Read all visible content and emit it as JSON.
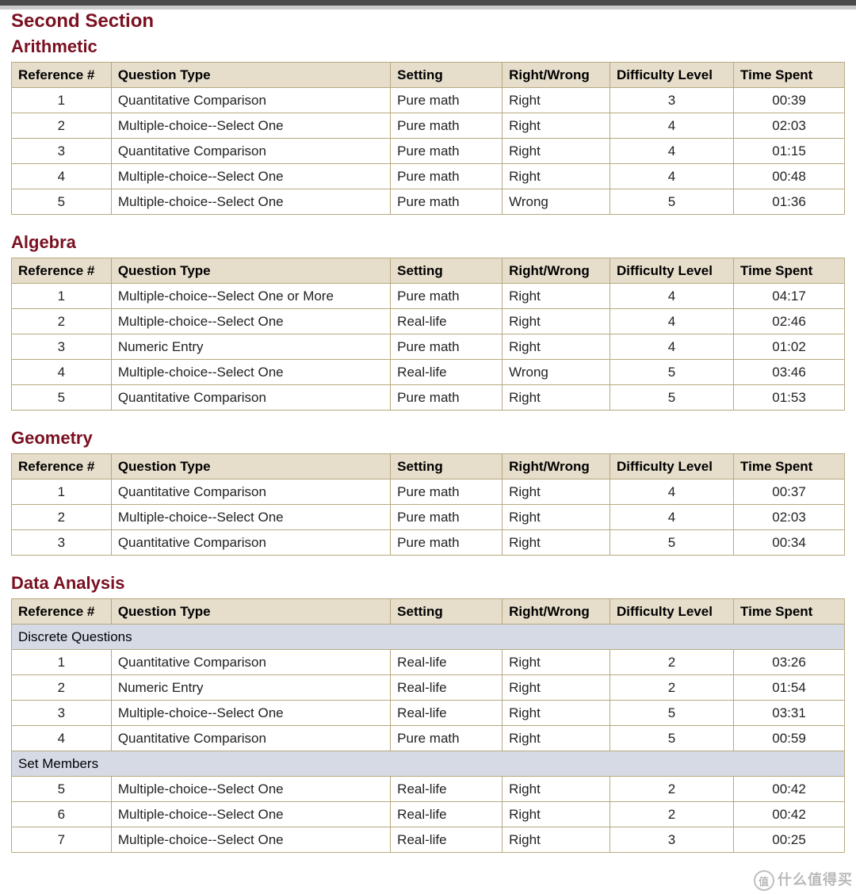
{
  "section_title": "Second Section",
  "columns": {
    "ref": "Reference #",
    "type": "Question Type",
    "setting": "Setting",
    "rw": "Right/Wrong",
    "diff": "Difficulty Level",
    "time": "Time Spent"
  },
  "tables": [
    {
      "title": "Arithmetic",
      "groups": [
        {
          "rows": [
            {
              "ref": "1",
              "type": "Quantitative Comparison",
              "setting": "Pure math",
              "rw": "Right",
              "diff": "3",
              "time": "00:39"
            },
            {
              "ref": "2",
              "type": "Multiple-choice--Select One",
              "setting": "Pure math",
              "rw": "Right",
              "diff": "4",
              "time": "02:03"
            },
            {
              "ref": "3",
              "type": "Quantitative Comparison",
              "setting": "Pure math",
              "rw": "Right",
              "diff": "4",
              "time": "01:15"
            },
            {
              "ref": "4",
              "type": "Multiple-choice--Select One",
              "setting": "Pure math",
              "rw": "Right",
              "diff": "4",
              "time": "00:48"
            },
            {
              "ref": "5",
              "type": "Multiple-choice--Select One",
              "setting": "Pure math",
              "rw": "Wrong",
              "diff": "5",
              "time": "01:36"
            }
          ]
        }
      ]
    },
    {
      "title": "Algebra",
      "groups": [
        {
          "rows": [
            {
              "ref": "1",
              "type": "Multiple-choice--Select One or More",
              "setting": "Pure math",
              "rw": "Right",
              "diff": "4",
              "time": "04:17"
            },
            {
              "ref": "2",
              "type": "Multiple-choice--Select One",
              "setting": "Real-life",
              "rw": "Right",
              "diff": "4",
              "time": "02:46"
            },
            {
              "ref": "3",
              "type": "Numeric Entry",
              "setting": "Pure math",
              "rw": "Right",
              "diff": "4",
              "time": "01:02"
            },
            {
              "ref": "4",
              "type": "Multiple-choice--Select One",
              "setting": "Real-life",
              "rw": "Wrong",
              "diff": "5",
              "time": "03:46"
            },
            {
              "ref": "5",
              "type": "Quantitative Comparison",
              "setting": "Pure math",
              "rw": "Right",
              "diff": "5",
              "time": "01:53"
            }
          ]
        }
      ]
    },
    {
      "title": "Geometry",
      "groups": [
        {
          "rows": [
            {
              "ref": "1",
              "type": "Quantitative Comparison",
              "setting": "Pure math",
              "rw": "Right",
              "diff": "4",
              "time": "00:37"
            },
            {
              "ref": "2",
              "type": "Multiple-choice--Select One",
              "setting": "Pure math",
              "rw": "Right",
              "diff": "4",
              "time": "02:03"
            },
            {
              "ref": "3",
              "type": "Quantitative Comparison",
              "setting": "Pure math",
              "rw": "Right",
              "diff": "5",
              "time": "00:34"
            }
          ]
        }
      ]
    },
    {
      "title": "Data Analysis",
      "groups": [
        {
          "label": "Discrete Questions",
          "rows": [
            {
              "ref": "1",
              "type": "Quantitative Comparison",
              "setting": "Real-life",
              "rw": "Right",
              "diff": "2",
              "time": "03:26"
            },
            {
              "ref": "2",
              "type": "Numeric Entry",
              "setting": "Real-life",
              "rw": "Right",
              "diff": "2",
              "time": "01:54"
            },
            {
              "ref": "3",
              "type": "Multiple-choice--Select One",
              "setting": "Real-life",
              "rw": "Right",
              "diff": "5",
              "time": "03:31"
            },
            {
              "ref": "4",
              "type": "Quantitative Comparison",
              "setting": "Pure math",
              "rw": "Right",
              "diff": "5",
              "time": "00:59"
            }
          ]
        },
        {
          "label": "Set Members",
          "rows": [
            {
              "ref": "5",
              "type": "Multiple-choice--Select One",
              "setting": "Real-life",
              "rw": "Right",
              "diff": "2",
              "time": "00:42"
            },
            {
              "ref": "6",
              "type": "Multiple-choice--Select One",
              "setting": "Real-life",
              "rw": "Right",
              "diff": "2",
              "time": "00:42"
            },
            {
              "ref": "7",
              "type": "Multiple-choice--Select One",
              "setting": "Real-life",
              "rw": "Right",
              "diff": "3",
              "time": "00:25"
            }
          ]
        }
      ]
    }
  ],
  "watermark": "什么值得买"
}
